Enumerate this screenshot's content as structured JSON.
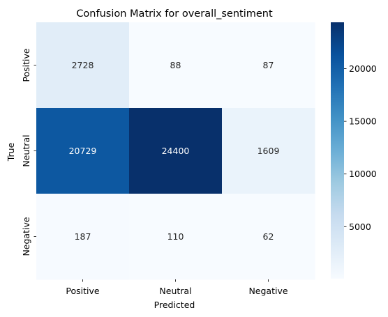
{
  "chart_data": {
    "type": "heatmap",
    "title": "Confusion Matrix for overall_sentiment",
    "xlabel": "Predicted",
    "ylabel": "True",
    "x_categories": [
      "Positive",
      "Neutral",
      "Negative"
    ],
    "y_categories": [
      "Positive",
      "Neutral",
      "Negative"
    ],
    "matrix": [
      [
        2728,
        88,
        87
      ],
      [
        20729,
        24400,
        1609
      ],
      [
        187,
        110,
        62
      ]
    ],
    "colormap": "Blues",
    "color_range": [
      62,
      24400
    ],
    "colorbar_ticks": [
      5000,
      10000,
      15000,
      20000
    ],
    "annot_colors": {
      "light": "#ffffff",
      "dark": "#262626"
    }
  }
}
